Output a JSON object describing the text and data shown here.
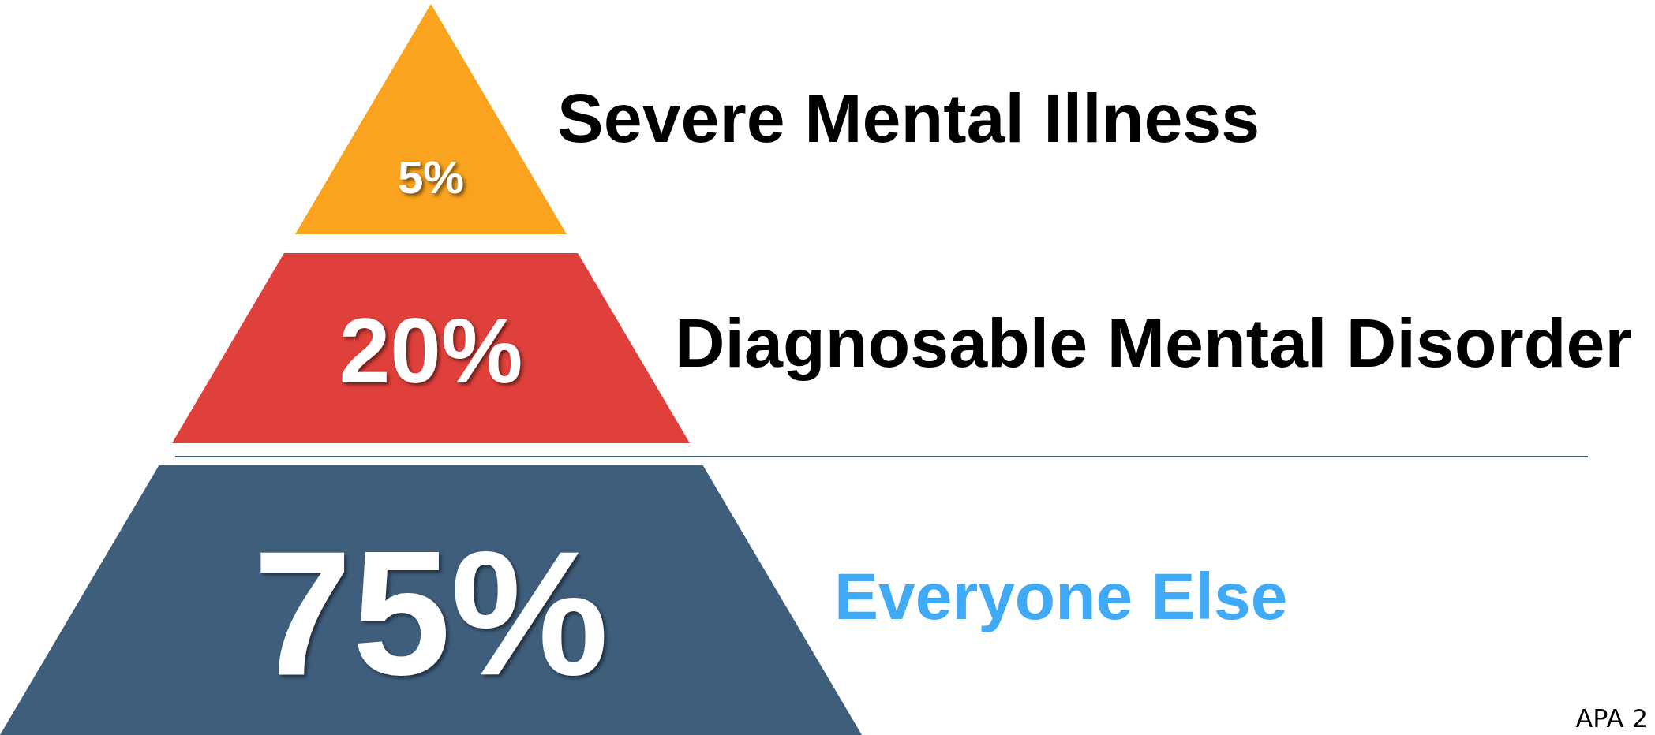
{
  "chart_data": {
    "type": "other",
    "categories": [
      "Severe Mental Illness",
      "Diagnosable Mental Disorder",
      "Everyone Else"
    ],
    "values": [
      5,
      20,
      75
    ],
    "colors": [
      "#f9a31e",
      "#e0403b",
      "#3f5e7c"
    ],
    "value_labels": [
      "5%",
      "20%",
      "75%"
    ],
    "annotations": [
      "APA 2"
    ]
  }
}
